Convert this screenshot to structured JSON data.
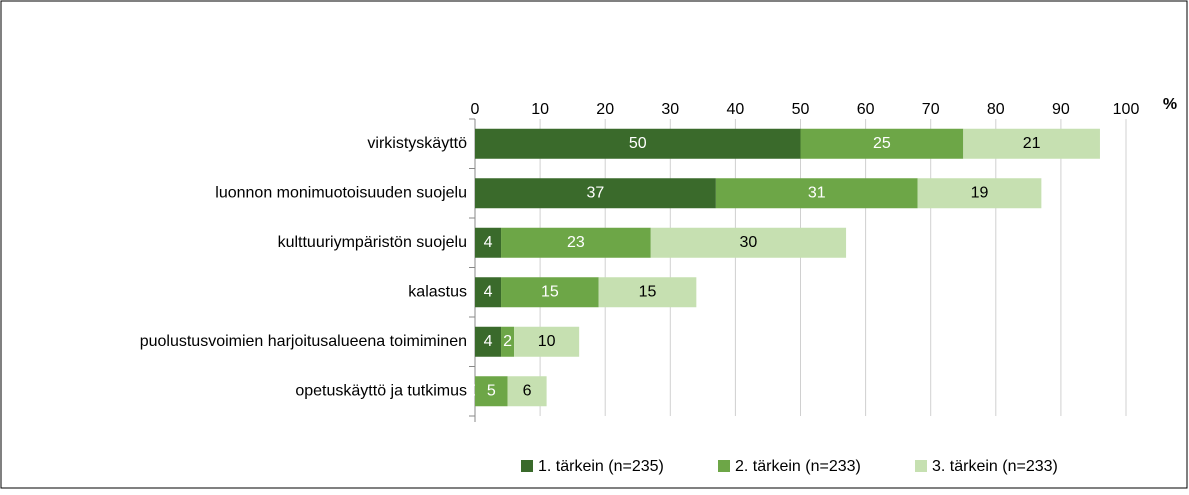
{
  "chart_data": {
    "type": "stacked-barh",
    "xlabel": "%",
    "categories": [
      "virkistyskäyttö",
      "luonnon monimuotoisuuden suojelu",
      "kulttuuriympäristön suojelu",
      "kalastus",
      "puolustusvoimien harjoitusalueena toimiminen",
      "opetuskäyttö ja tutkimus"
    ],
    "series": [
      {
        "name": "1. tärkein (n=235)",
        "color": "#3a6a2b",
        "label_color": "#ffffff",
        "values": [
          50,
          37,
          4,
          4,
          4,
          0
        ]
      },
      {
        "name": "2. tärkein (n=233)",
        "color": "#6da647",
        "label_color": "#ffffff",
        "values": [
          25,
          31,
          23,
          15,
          2,
          5
        ]
      },
      {
        "name": "3. tärkein (n=233)",
        "color": "#c6e0b1",
        "label_color": "#000000",
        "values": [
          21,
          19,
          30,
          15,
          10,
          6
        ]
      }
    ],
    "xlim": [
      0,
      100
    ],
    "xticks": [
      0,
      10,
      20,
      30,
      40,
      50,
      60,
      70,
      80,
      90,
      100
    ],
    "grid": true,
    "legend": "bottom"
  }
}
